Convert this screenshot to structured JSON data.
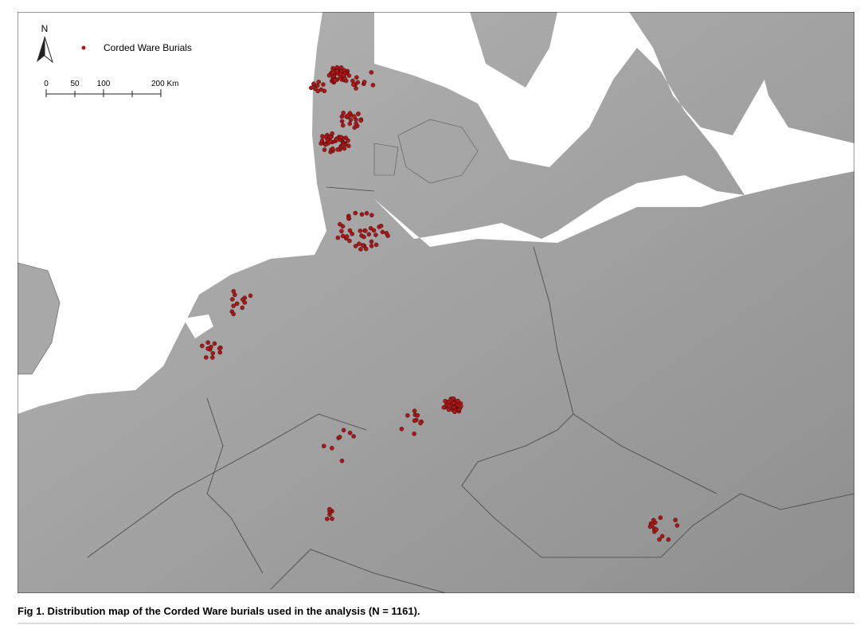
{
  "map": {
    "north_label": "N",
    "legend": "Corded Ware Burials",
    "scale_bar": {
      "labels": [
        "0",
        "50",
        "100",
        "200 Km"
      ]
    }
  },
  "caption": "Fig 1. Distribution map of the Corded Ware burials used in the analysis (N = 1161)."
}
